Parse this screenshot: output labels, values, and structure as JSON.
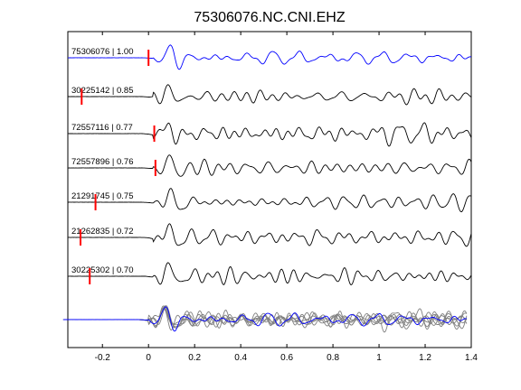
{
  "chart_data": {
    "type": "line",
    "title": "75306076.NC.CNI.EHZ",
    "xlabel": "",
    "ylabel": "",
    "xlim": [
      -0.35,
      1.4
    ],
    "xticks": [
      -0.2,
      0,
      0.2,
      0.4,
      0.6,
      0.8,
      1,
      1.2,
      1.4
    ],
    "xtick_labels": [
      "-0.2",
      "0",
      "0.2",
      "0.4",
      "0.6",
      "0.8",
      "1",
      "1.2",
      "1.4"
    ],
    "grid": false,
    "colors": {
      "primary_trace": "#0000ff",
      "other_trace": "#000000",
      "pick_marker": "#ff0000",
      "stack_trace": "#808080"
    },
    "traces": [
      {
        "label": "75306076 | 1.00",
        "pick": 0.0,
        "onset": 0.02,
        "primary": true
      },
      {
        "label": "30225142 | 0.85",
        "pick": -0.29,
        "onset": 0.02,
        "primary": false
      },
      {
        "label": "72557116 | 0.77",
        "pick": 0.025,
        "onset": 0.02,
        "primary": false
      },
      {
        "label": "72557896 | 0.76",
        "pick": 0.03,
        "onset": 0.02,
        "primary": false
      },
      {
        "label": "21291745 | 0.75",
        "pick": -0.23,
        "onset": 0.02,
        "primary": false
      },
      {
        "label": "21262835 | 0.72",
        "pick": -0.295,
        "onset": 0.02,
        "primary": false
      },
      {
        "label": "30225302 | 0.70",
        "pick": -0.255,
        "onset": 0.02,
        "primary": false
      }
    ],
    "stack": {
      "traces": 7,
      "onset": 0.0
    }
  }
}
